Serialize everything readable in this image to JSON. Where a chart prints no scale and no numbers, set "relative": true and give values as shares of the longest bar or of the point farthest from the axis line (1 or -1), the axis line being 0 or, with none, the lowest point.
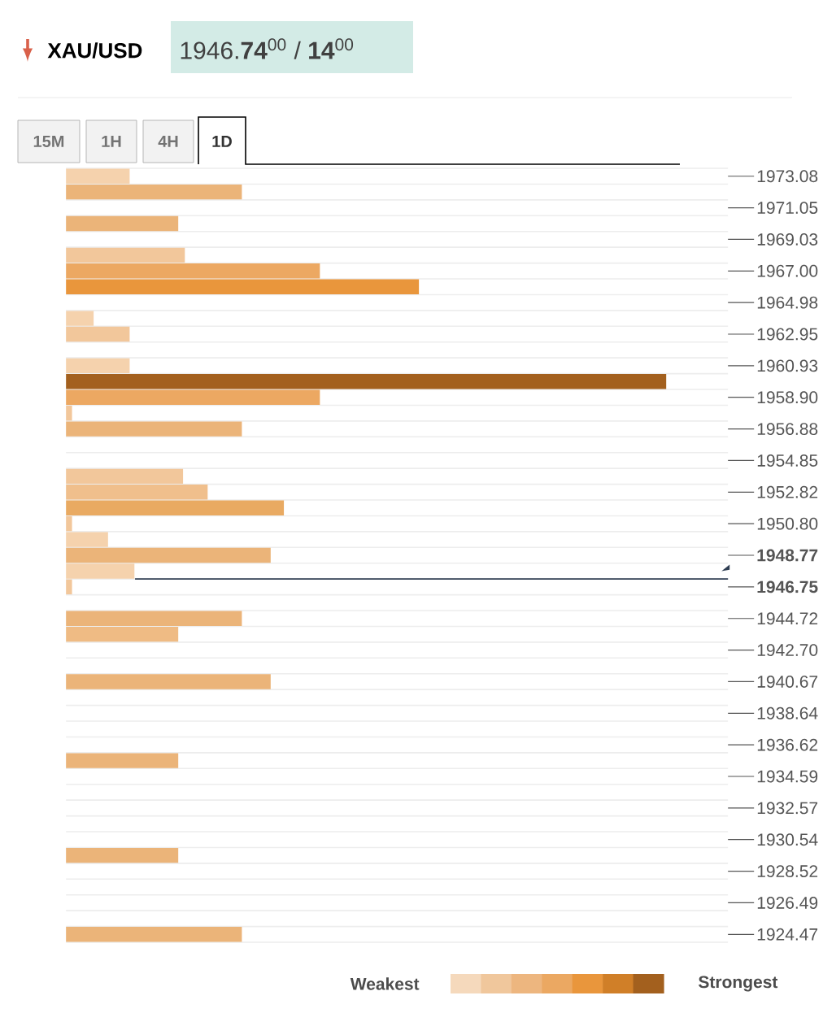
{
  "chart_data": {
    "type": "bar",
    "orientation": "horizontal",
    "relative": true,
    "title": "XAU/USD",
    "subtitle": "1946.**74**$^{00}$ / **14**$^{00}$",
    "categories": [
      "1973.08",
      null,
      "1971.05",
      null,
      "1969.03",
      null,
      "1967.00",
      null,
      "1964.98",
      null,
      "1962.95",
      null,
      "1960.93",
      null,
      "1958.90",
      null,
      "1956.88",
      null,
      "1954.85",
      null,
      "1952.82",
      null,
      "1950.80",
      null,
      "**1948.77**",
      null,
      "**1946.75**",
      null,
      "1944.72",
      null,
      "1942.70",
      null,
      "1940.67",
      null,
      "1938.64",
      null,
      "1936.62",
      null,
      "1934.59",
      null,
      "1932.57",
      null,
      "1930.54",
      null,
      "1928.52",
      null,
      "1926.49",
      null,
      "1924.47"
    ],
    "values": [
      0.106,
      0.293,
      0,
      0.187,
      0,
      0.198,
      0.423,
      0.588,
      0,
      0.046,
      0.106,
      0,
      0.106,
      1,
      0.423,
      0.01,
      0.293,
      0,
      0,
      0.195,
      0.236,
      0.363,
      0.01,
      0.07,
      0.341,
      0.114,
      0.01,
      0,
      0.293,
      0.187,
      0,
      0,
      0.341,
      0,
      0,
      0,
      0,
      0.187,
      0,
      0,
      0,
      0,
      0,
      0.187,
      0,
      0,
      0,
      0,
      0.293
    ],
    "colors": [
      "#f5d2ad",
      "#ebb479",
      "#ebb479",
      "#ebb479",
      "#ebb479",
      "#f2c79b",
      "#eca862",
      "#e9963c",
      "#ebb479",
      "#f5d2ad",
      "#f2c79b",
      "#ebb479",
      "#f5d2ad",
      "#a3601e",
      "#eca862",
      "#f2c79b",
      "#ebb479",
      "#ebb479",
      "#ebb479",
      "#f2c79b",
      "#f0bf8c",
      "#e9aa62",
      "#f2c79b",
      "#f5d2ad",
      "#ebb479",
      "#f5d2ad",
      "#f2c79b",
      "#ebb479",
      "#ebb479",
      "#efbb84",
      "#ebb479",
      "#ebb479",
      "#ebb479",
      "#ebb479",
      "#ebb479",
      "#ebb479",
      "#ebb479",
      "#ebb479",
      "#ebb479",
      "#ebb479",
      "#ebb479",
      "#ebb479",
      "#ebb479",
      "#ebb479",
      "#ebb479",
      "#ebb479",
      "#ebb479",
      "#ebb479",
      "#ebb479"
    ],
    "grid": "y",
    "ref_lines": [
      {
        "axis": "y",
        "value": "**1946.75**",
        "color": "#2e3d52"
      }
    ],
    "annotations": [
      "15M",
      "1H",
      "4H",
      "1D",
      "Weakest",
      "Strongest"
    ]
  }
}
